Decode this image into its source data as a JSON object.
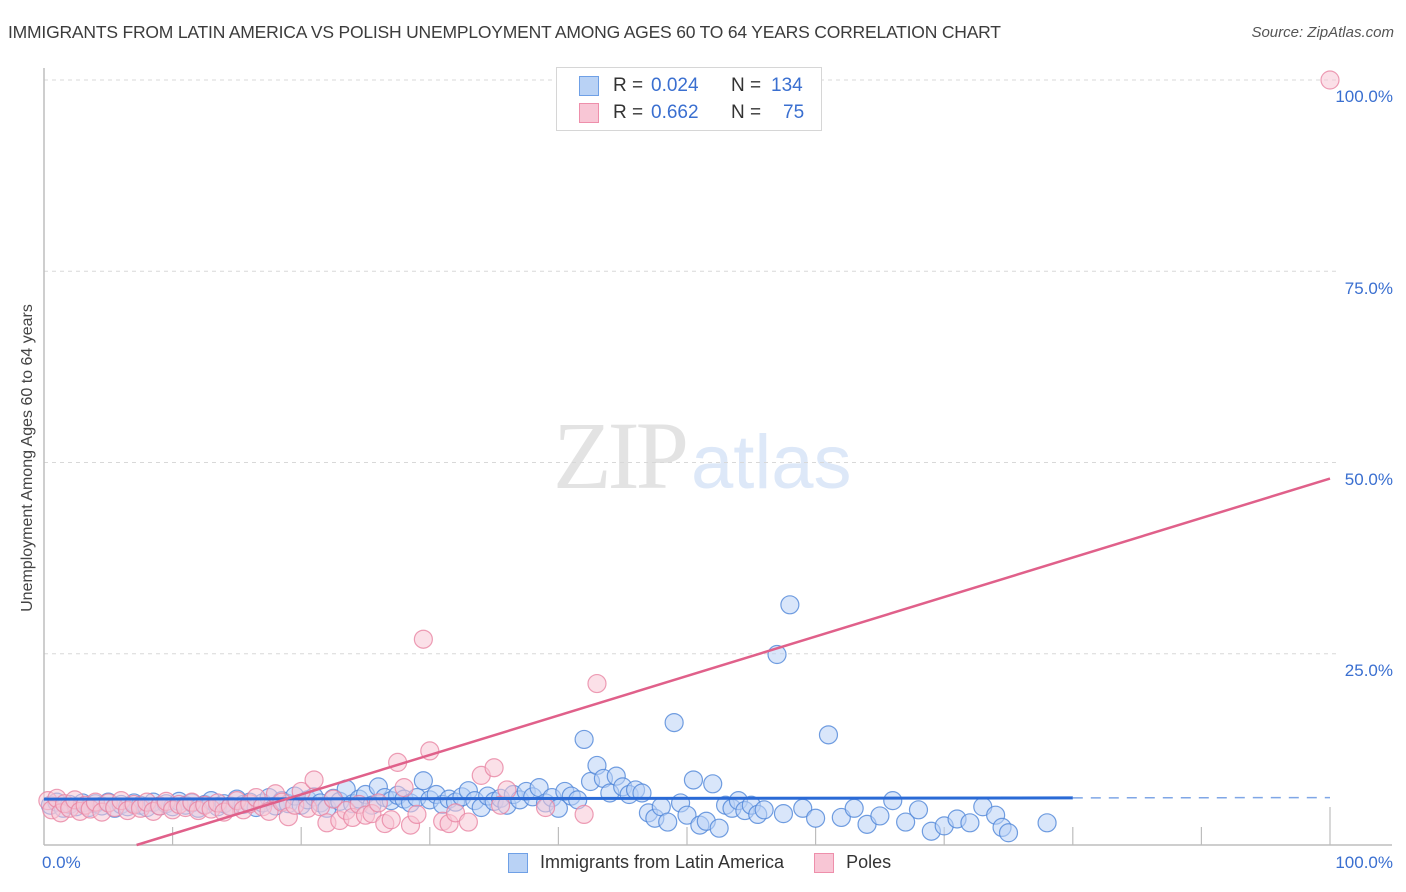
{
  "header": {
    "title": "IMMIGRANTS FROM LATIN AMERICA VS POLISH UNEMPLOYMENT AMONG AGES 60 TO 64 YEARS CORRELATION CHART",
    "source": "Source: ZipAtlas.com"
  },
  "watermark": {
    "zip": "ZIP",
    "atlas": "atlas"
  },
  "legend": {
    "rows": [
      {
        "r_label": "R =",
        "r_value": "0.024",
        "n_label": "N =",
        "n_value": "134",
        "color": "#6fa0e6",
        "fill": "#b9d2f5"
      },
      {
        "r_label": "R =",
        "r_value": "0.662",
        "n_label": "N =",
        "n_value": "75",
        "color": "#ee8fab",
        "fill": "#f8c6d5"
      }
    ]
  },
  "axes": {
    "y_label": "Unemployment Among Ages 60 to 64 years",
    "y_ticks": [
      "100.0%",
      "75.0%",
      "50.0%",
      "25.0%"
    ],
    "x_ticks": [
      "0.0%",
      "100.0%"
    ]
  },
  "bottom_legend": [
    {
      "label": "Immigrants from Latin America",
      "color": "#6fa0e6",
      "fill": "#b9d2f5"
    },
    {
      "label": "Poles",
      "color": "#ee8fab",
      "fill": "#f8c6d5"
    }
  ],
  "colors": {
    "blue_stroke": "#4f86d8",
    "blue_fill": "#b9d2f5",
    "blue_line": "#2a6ad6",
    "pink_stroke": "#e884a2",
    "pink_fill": "#f8c6d5",
    "pink_line": "#e0608a",
    "tick_text": "#3a6fd0"
  },
  "chart_data": {
    "type": "scatter",
    "title": "Immigrants from Latin America vs Polish Unemployment Among Ages 60 to 64 years Correlation Chart",
    "xlabel": "",
    "ylabel": "Unemployment Among Ages 60 to 64 years",
    "xlim": [
      0,
      100
    ],
    "ylim": [
      0,
      100
    ],
    "x_ticks": [
      "0.0%",
      "100.0%"
    ],
    "y_ticks": [
      "25.0%",
      "50.0%",
      "75.0%",
      "100.0%"
    ],
    "grid": "horizontal dashed",
    "legend_position": "bottom-center",
    "series": [
      {
        "name": "Immigrants from Latin America",
        "R": 0.024,
        "N": 134,
        "trend": {
          "x0": 0,
          "y0": 6.0,
          "x1": 100,
          "y1": 6.2,
          "solid_until_x": 80
        },
        "points": [
          [
            0.5,
            5.2
          ],
          [
            1,
            5.6
          ],
          [
            1.5,
            4.8
          ],
          [
            2,
            5.3
          ],
          [
            2.5,
            5.0
          ],
          [
            3,
            5.5
          ],
          [
            3.5,
            4.9
          ],
          [
            4,
            5.4
          ],
          [
            4.5,
            5.1
          ],
          [
            5,
            5.6
          ],
          [
            5.5,
            4.8
          ],
          [
            6,
            5.3
          ],
          [
            6.5,
            5.0
          ],
          [
            7,
            5.5
          ],
          [
            7.5,
            5.2
          ],
          [
            8,
            4.9
          ],
          [
            8.5,
            5.6
          ],
          [
            9,
            5.1
          ],
          [
            9.5,
            5.4
          ],
          [
            10,
            5.0
          ],
          [
            10.5,
            5.7
          ],
          [
            11,
            5.2
          ],
          [
            11.5,
            5.5
          ],
          [
            12,
            4.8
          ],
          [
            12.5,
            5.3
          ],
          [
            13,
            5.8
          ],
          [
            13.5,
            5.0
          ],
          [
            14,
            5.4
          ],
          [
            14.5,
            5.1
          ],
          [
            15,
            6.0
          ],
          [
            15.5,
            5.3
          ],
          [
            16,
            5.6
          ],
          [
            16.5,
            4.9
          ],
          [
            17,
            5.5
          ],
          [
            17.5,
            6.2
          ],
          [
            18,
            5.1
          ],
          [
            18.5,
            5.8
          ],
          [
            19,
            5.4
          ],
          [
            19.5,
            6.4
          ],
          [
            20,
            5.2
          ],
          [
            20.5,
            5.9
          ],
          [
            21,
            6.3
          ],
          [
            21.5,
            5.5
          ],
          [
            22,
            4.8
          ],
          [
            22.5,
            6.1
          ],
          [
            23,
            5.7
          ],
          [
            23.5,
            7.3
          ],
          [
            24,
            5.4
          ],
          [
            24.5,
            6.0
          ],
          [
            25,
            6.6
          ],
          [
            25.5,
            5.2
          ],
          [
            26,
            7.6
          ],
          [
            26.5,
            6.2
          ],
          [
            27,
            5.8
          ],
          [
            27.5,
            6.5
          ],
          [
            28,
            6.0
          ],
          [
            28.5,
            5.5
          ],
          [
            29,
            6.2
          ],
          [
            29.5,
            8.4
          ],
          [
            30,
            5.9
          ],
          [
            30.5,
            6.6
          ],
          [
            31,
            5.3
          ],
          [
            31.5,
            6.0
          ],
          [
            32,
            5.6
          ],
          [
            32.5,
            6.3
          ],
          [
            33,
            7.1
          ],
          [
            33.5,
            5.8
          ],
          [
            34,
            4.9
          ],
          [
            34.5,
            6.4
          ],
          [
            35,
            5.7
          ],
          [
            35.5,
            6.1
          ],
          [
            36,
            5.2
          ],
          [
            36.5,
            6.6
          ],
          [
            37,
            5.9
          ],
          [
            37.5,
            7.0
          ],
          [
            38,
            6.3
          ],
          [
            38.5,
            7.5
          ],
          [
            39,
            5.5
          ],
          [
            39.5,
            6.2
          ],
          [
            40,
            4.8
          ],
          [
            40.5,
            7.0
          ],
          [
            41,
            6.4
          ],
          [
            41.5,
            5.9
          ],
          [
            42,
            13.8
          ],
          [
            42.5,
            8.3
          ],
          [
            43,
            10.4
          ],
          [
            43.5,
            8.7
          ],
          [
            44,
            6.8
          ],
          [
            44.5,
            9.0
          ],
          [
            45,
            7.6
          ],
          [
            45.5,
            6.6
          ],
          [
            46,
            7.2
          ],
          [
            46.5,
            6.8
          ],
          [
            47,
            4.2
          ],
          [
            47.5,
            3.5
          ],
          [
            48,
            5.0
          ],
          [
            48.5,
            3.0
          ],
          [
            49,
            16.0
          ],
          [
            49.5,
            5.5
          ],
          [
            50,
            3.9
          ],
          [
            50.5,
            8.5
          ],
          [
            51,
            2.6
          ],
          [
            51.5,
            3.1
          ],
          [
            52,
            8.0
          ],
          [
            52.5,
            2.2
          ],
          [
            53,
            5.2
          ],
          [
            53.5,
            4.8
          ],
          [
            54,
            5.8
          ],
          [
            54.5,
            4.5
          ],
          [
            55,
            5.2
          ],
          [
            55.5,
            4.0
          ],
          [
            56,
            4.6
          ],
          [
            57,
            24.9
          ],
          [
            57.5,
            4.1
          ],
          [
            58,
            31.4
          ],
          [
            59,
            4.8
          ],
          [
            60,
            3.5
          ],
          [
            61,
            14.4
          ],
          [
            62,
            3.6
          ],
          [
            63,
            4.8
          ],
          [
            64,
            2.7
          ],
          [
            65,
            3.8
          ],
          [
            66,
            5.8
          ],
          [
            67,
            3.0
          ],
          [
            68,
            4.6
          ],
          [
            69,
            1.8
          ],
          [
            70,
            2.5
          ],
          [
            71,
            3.4
          ],
          [
            72,
            2.9
          ],
          [
            73,
            5.0
          ],
          [
            74,
            3.9
          ],
          [
            74.5,
            2.3
          ],
          [
            75,
            1.6
          ],
          [
            78,
            2.9
          ]
        ]
      },
      {
        "name": "Poles",
        "R": 0.662,
        "N": 75,
        "trend": {
          "x0": 7.2,
          "y0": 0,
          "x1": 100,
          "y1": 47.9
        },
        "points": [
          [
            0.3,
            5.8
          ],
          [
            0.6,
            4.6
          ],
          [
            1,
            6.1
          ],
          [
            1.3,
            4.2
          ],
          [
            1.6,
            5.4
          ],
          [
            2,
            4.8
          ],
          [
            2.4,
            5.9
          ],
          [
            2.8,
            4.4
          ],
          [
            3.2,
            5.2
          ],
          [
            3.6,
            4.7
          ],
          [
            4,
            5.6
          ],
          [
            4.5,
            4.3
          ],
          [
            5,
            5.5
          ],
          [
            5.5,
            4.9
          ],
          [
            6,
            5.8
          ],
          [
            6.5,
            4.5
          ],
          [
            7,
            5.3
          ],
          [
            7.5,
            4.8
          ],
          [
            8,
            5.6
          ],
          [
            8.5,
            4.4
          ],
          [
            9,
            5.1
          ],
          [
            9.5,
            5.7
          ],
          [
            10,
            4.6
          ],
          [
            10.5,
            5.3
          ],
          [
            11,
            4.9
          ],
          [
            11.5,
            5.6
          ],
          [
            12,
            4.5
          ],
          [
            12.5,
            5.2
          ],
          [
            13,
            4.7
          ],
          [
            13.5,
            5.5
          ],
          [
            14,
            4.3
          ],
          [
            14.5,
            5.0
          ],
          [
            15,
            5.8
          ],
          [
            15.5,
            4.6
          ],
          [
            16,
            5.4
          ],
          [
            16.5,
            6.2
          ],
          [
            17,
            5.0
          ],
          [
            17.5,
            4.4
          ],
          [
            18,
            6.7
          ],
          [
            18.5,
            5.6
          ],
          [
            19,
            3.7
          ],
          [
            19.5,
            5.2
          ],
          [
            20,
            7.0
          ],
          [
            20.5,
            4.8
          ],
          [
            21,
            8.5
          ],
          [
            21.5,
            5.0
          ],
          [
            22,
            2.9
          ],
          [
            22.5,
            6.0
          ],
          [
            23,
            3.2
          ],
          [
            23.5,
            4.5
          ],
          [
            24,
            3.6
          ],
          [
            24.5,
            5.3
          ],
          [
            25,
            3.9
          ],
          [
            25.5,
            4.1
          ],
          [
            26,
            5.5
          ],
          [
            26.5,
            2.8
          ],
          [
            27,
            3.3
          ],
          [
            27.5,
            10.8
          ],
          [
            28,
            7.5
          ],
          [
            28.5,
            2.6
          ],
          [
            29,
            4.0
          ],
          [
            29.5,
            26.9
          ],
          [
            30,
            12.3
          ],
          [
            31,
            3.1
          ],
          [
            31.5,
            2.8
          ],
          [
            32,
            4.2
          ],
          [
            33,
            3.0
          ],
          [
            34,
            9.1
          ],
          [
            35,
            10.1
          ],
          [
            35.5,
            5.2
          ],
          [
            36,
            7.2
          ],
          [
            39,
            4.9
          ],
          [
            42,
            4.0
          ],
          [
            43,
            21.1
          ],
          [
            100,
            100.0
          ]
        ]
      }
    ]
  }
}
